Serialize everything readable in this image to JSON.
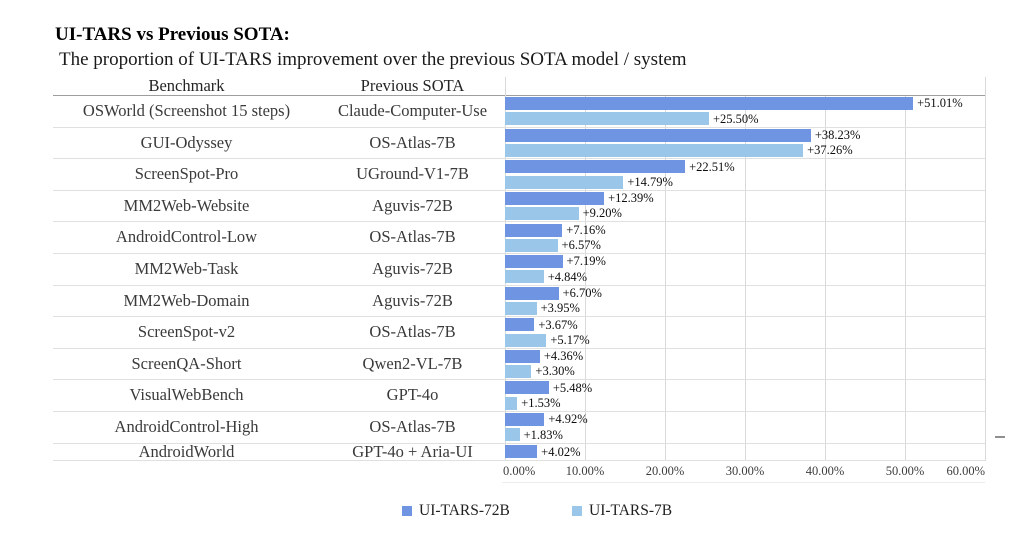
{
  "chart_data": {
    "type": "bar",
    "orientation": "horizontal",
    "title": "UI-TARS vs Previous SOTA:",
    "subtitle": "The proportion of UI-TARS improvement over the previous SOTA model / system",
    "columns": [
      "Benchmark",
      "Previous SOTA"
    ],
    "value_axis": {
      "min": 0,
      "max": 60,
      "ticks": [
        "0.00%",
        "10.00%",
        "20.00%",
        "30.00%",
        "40.00%",
        "50.00%",
        "60.00%"
      ],
      "grid": true
    },
    "legend": {
      "position": "bottom",
      "items": [
        {
          "name": "UI-TARS-72B",
          "color": "#6E94E2"
        },
        {
          "name": "UI-TARS-7B",
          "color": "#9AC7E9"
        }
      ]
    },
    "rows": [
      {
        "benchmark": "OSWorld (Screenshot 15 steps)",
        "previous_sota": "Claude-Computer-Use",
        "bars": [
          {
            "series": "UI-TARS-72B",
            "value": 51.01,
            "label": "+51.01%"
          },
          {
            "series": "UI-TARS-7B",
            "value": 25.5,
            "label": "+25.50%"
          }
        ]
      },
      {
        "benchmark": "GUI-Odyssey",
        "previous_sota": "OS-Atlas-7B",
        "bars": [
          {
            "series": "UI-TARS-72B",
            "value": 38.23,
            "label": "+38.23%"
          },
          {
            "series": "UI-TARS-7B",
            "value": 37.26,
            "label": "+37.26%"
          }
        ]
      },
      {
        "benchmark": "ScreenSpot-Pro",
        "previous_sota": "UGround-V1-7B",
        "bars": [
          {
            "series": "UI-TARS-72B",
            "value": 22.51,
            "label": "+22.51%"
          },
          {
            "series": "UI-TARS-7B",
            "value": 14.79,
            "label": "+14.79%"
          }
        ]
      },
      {
        "benchmark": "MM2Web-Website",
        "previous_sota": "Aguvis-72B",
        "bars": [
          {
            "series": "UI-TARS-72B",
            "value": 12.39,
            "label": "+12.39%"
          },
          {
            "series": "UI-TARS-7B",
            "value": 9.2,
            "label": "+9.20%"
          }
        ]
      },
      {
        "benchmark": "AndroidControl-Low",
        "previous_sota": "OS-Atlas-7B",
        "bars": [
          {
            "series": "UI-TARS-72B",
            "value": 7.16,
            "label": "+7.16%"
          },
          {
            "series": "UI-TARS-7B",
            "value": 6.57,
            "label": "+6.57%"
          }
        ]
      },
      {
        "benchmark": "MM2Web-Task",
        "previous_sota": "Aguvis-72B",
        "bars": [
          {
            "series": "UI-TARS-72B",
            "value": 7.19,
            "label": "+7.19%"
          },
          {
            "series": "UI-TARS-7B",
            "value": 4.84,
            "label": "+4.84%"
          }
        ]
      },
      {
        "benchmark": "MM2Web-Domain",
        "previous_sota": "Aguvis-72B",
        "bars": [
          {
            "series": "UI-TARS-72B",
            "value": 6.7,
            "label": "+6.70%"
          },
          {
            "series": "UI-TARS-7B",
            "value": 3.95,
            "label": "+3.95%"
          }
        ]
      },
      {
        "benchmark": "ScreenSpot-v2",
        "previous_sota": "OS-Atlas-7B",
        "bars": [
          {
            "series": "UI-TARS-72B",
            "value": 3.67,
            "label": "+3.67%"
          },
          {
            "series": "UI-TARS-7B",
            "value": 5.17,
            "label": "+5.17%"
          }
        ]
      },
      {
        "benchmark": "ScreenQA-Short",
        "previous_sota": "Qwen2-VL-7B",
        "bars": [
          {
            "series": "UI-TARS-72B",
            "value": 4.36,
            "label": "+4.36%"
          },
          {
            "series": "UI-TARS-7B",
            "value": 3.3,
            "label": "+3.30%"
          }
        ]
      },
      {
        "benchmark": "VisualWebBench",
        "previous_sota": "GPT-4o",
        "bars": [
          {
            "series": "UI-TARS-72B",
            "value": 5.48,
            "label": "+5.48%"
          },
          {
            "series": "UI-TARS-7B",
            "value": 1.53,
            "label": "+1.53%"
          }
        ]
      },
      {
        "benchmark": "AndroidControl-High",
        "previous_sota": "OS-Atlas-7B",
        "bars": [
          {
            "series": "UI-TARS-72B",
            "value": 4.92,
            "label": "+4.92%"
          },
          {
            "series": "UI-TARS-7B",
            "value": 1.83,
            "label": "+1.83%"
          }
        ]
      },
      {
        "benchmark": "AndroidWorld",
        "previous_sota": "GPT-4o + Aria-UI",
        "bars": [
          {
            "series": "UI-TARS-72B",
            "value": 4.02,
            "label": "+4.02%"
          }
        ]
      }
    ]
  }
}
